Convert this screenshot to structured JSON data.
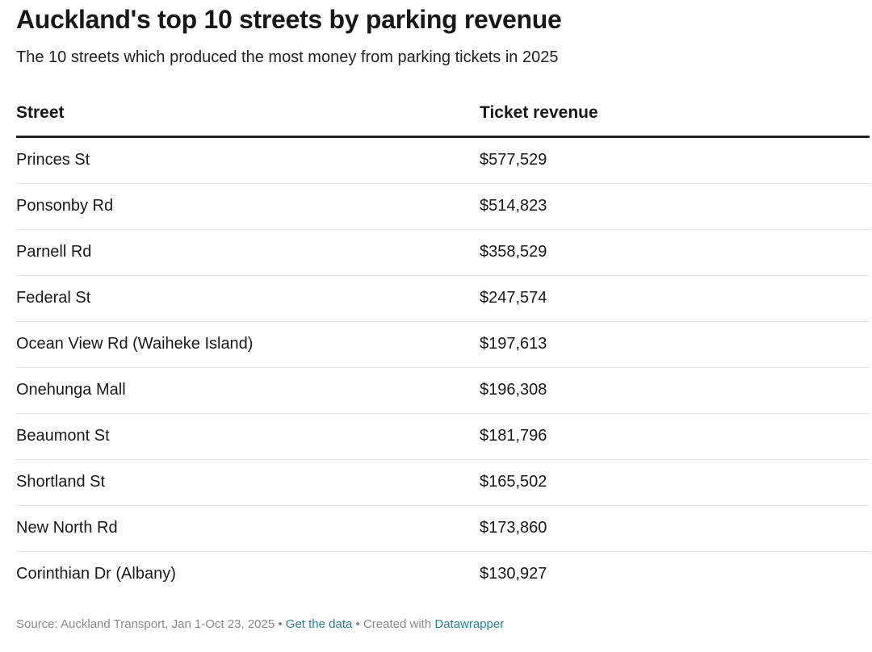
{
  "header": {
    "title": "Auckland's top 10 streets by parking revenue",
    "subtitle": "The 10 streets which produced the most money from parking tickets in 2025"
  },
  "table": {
    "columns": [
      "Street",
      "Ticket revenue"
    ],
    "rows": [
      [
        "Princes St",
        "$577,529"
      ],
      [
        "Ponsonby Rd",
        "$514,823"
      ],
      [
        "Parnell Rd",
        "$358,529"
      ],
      [
        "Federal St",
        "$247,574"
      ],
      [
        "Ocean View Rd (Waiheke Island)",
        "$197,613"
      ],
      [
        "Onehunga Mall",
        "$196,308"
      ],
      [
        "Beaumont St",
        "$181,796"
      ],
      [
        "Shortland St",
        "$165,502"
      ],
      [
        "New North Rd",
        "$173,860"
      ],
      [
        "Corinthian Dr (Albany)",
        "$130,927"
      ]
    ]
  },
  "footer": {
    "source": "Source: Auckland Transport, Jan 1-Oct 23, 2025",
    "separator": "•",
    "data_link": "Get the data",
    "created_with": "Created with",
    "tool_link": "Datawrapper"
  }
}
